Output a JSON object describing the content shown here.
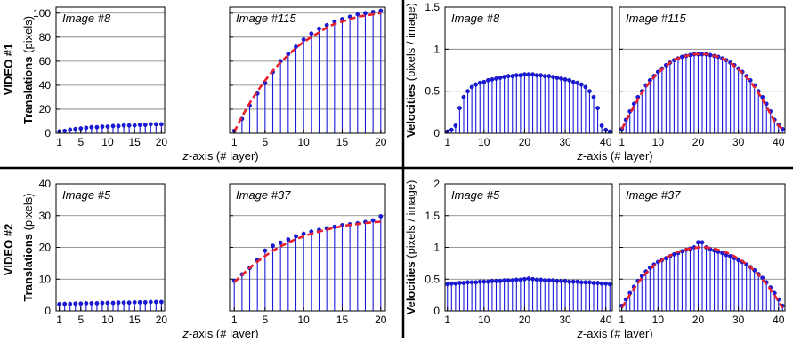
{
  "figure": {
    "row_labels": [
      "VIDEO #1",
      "VIDEO #2"
    ]
  },
  "chart_data": [
    {
      "type": "stem",
      "id": "v1-translations",
      "row_label": "VIDEO #1",
      "ylabel_bold": "Translations",
      "ylabel_unit": "(pixels)",
      "xlabel_italic": "z",
      "xlabel_rest": "-axis (# layer)",
      "ylim": [
        0,
        105
      ],
      "yticks": [
        0,
        20,
        40,
        60,
        80,
        100
      ],
      "xticks": [
        1,
        5,
        10,
        15,
        20
      ],
      "grid": "horizontal",
      "panels": [
        {
          "title": "Image #8",
          "x": [
            1,
            2,
            3,
            4,
            5,
            6,
            7,
            8,
            9,
            10,
            11,
            12,
            13,
            14,
            15,
            16,
            17,
            18,
            19,
            20
          ],
          "values": [
            1.5,
            2,
            3,
            3.5,
            4,
            4.5,
            5,
            5,
            5.5,
            5.5,
            6,
            6,
            6.5,
            6.5,
            6.5,
            7,
            7,
            7.5,
            7.5,
            7.5
          ],
          "fit": false
        },
        {
          "title": "Image #115",
          "x": [
            1,
            2,
            3,
            4,
            5,
            6,
            7,
            8,
            9,
            10,
            11,
            12,
            13,
            14,
            15,
            16,
            17,
            18,
            19,
            20
          ],
          "values": [
            2,
            12,
            23,
            33,
            42,
            51,
            60,
            66,
            72,
            78,
            83,
            87,
            90,
            93,
            95,
            97,
            99,
            100,
            101,
            102
          ],
          "fit": true,
          "fit_values": [
            1,
            14,
            25,
            35,
            44,
            52,
            59,
            65,
            71,
            76,
            80,
            84,
            88,
            91,
            93,
            95,
            97,
            98,
            99,
            100
          ]
        }
      ]
    },
    {
      "type": "stem",
      "id": "v1-velocities",
      "row_label": "VIDEO #1",
      "ylabel_bold": "Velocities",
      "ylabel_unit": "(pixels / image)",
      "xlabel_italic": "z",
      "xlabel_rest": "-axis (# layer)",
      "ylim": [
        0,
        1.5
      ],
      "yticks": [
        0,
        0.5,
        1,
        1.5
      ],
      "xticks": [
        1,
        10,
        20,
        30,
        40
      ],
      "grid": "horizontal",
      "panels": [
        {
          "title": "Image #8",
          "x": [
            1,
            2,
            3,
            4,
            5,
            6,
            7,
            8,
            9,
            10,
            11,
            12,
            13,
            14,
            15,
            16,
            17,
            18,
            19,
            20,
            21,
            22,
            23,
            24,
            25,
            26,
            27,
            28,
            29,
            30,
            31,
            32,
            33,
            34,
            35,
            36,
            37,
            38,
            39,
            40,
            41
          ],
          "values": [
            0.02,
            0.04,
            0.09,
            0.3,
            0.43,
            0.5,
            0.55,
            0.58,
            0.6,
            0.61,
            0.63,
            0.64,
            0.65,
            0.66,
            0.67,
            0.68,
            0.68,
            0.69,
            0.69,
            0.7,
            0.7,
            0.7,
            0.69,
            0.69,
            0.68,
            0.68,
            0.67,
            0.66,
            0.65,
            0.64,
            0.63,
            0.61,
            0.6,
            0.58,
            0.55,
            0.5,
            0.43,
            0.3,
            0.09,
            0.04,
            0.02
          ],
          "fit": false
        },
        {
          "title": "Image #115",
          "x": [
            1,
            2,
            3,
            4,
            5,
            6,
            7,
            8,
            9,
            10,
            11,
            12,
            13,
            14,
            15,
            16,
            17,
            18,
            19,
            20,
            21,
            22,
            23,
            24,
            25,
            26,
            27,
            28,
            29,
            30,
            31,
            32,
            33,
            34,
            35,
            36,
            37,
            38,
            39,
            40,
            41
          ],
          "values": [
            0.05,
            0.16,
            0.26,
            0.35,
            0.43,
            0.5,
            0.57,
            0.63,
            0.68,
            0.73,
            0.77,
            0.81,
            0.84,
            0.87,
            0.89,
            0.91,
            0.92,
            0.93,
            0.94,
            0.94,
            0.94,
            0.94,
            0.93,
            0.92,
            0.91,
            0.89,
            0.87,
            0.84,
            0.81,
            0.77,
            0.73,
            0.68,
            0.63,
            0.57,
            0.5,
            0.43,
            0.35,
            0.26,
            0.16,
            0.1,
            0.05
          ],
          "fit": true,
          "fit_values": [
            0.05,
            0.14,
            0.23,
            0.32,
            0.4,
            0.48,
            0.55,
            0.61,
            0.67,
            0.72,
            0.76,
            0.8,
            0.84,
            0.87,
            0.89,
            0.91,
            0.92,
            0.93,
            0.94,
            0.94,
            0.94,
            0.94,
            0.93,
            0.92,
            0.91,
            0.89,
            0.87,
            0.84,
            0.8,
            0.76,
            0.72,
            0.67,
            0.61,
            0.55,
            0.48,
            0.4,
            0.32,
            0.23,
            0.14,
            0.09,
            0.05
          ]
        }
      ]
    },
    {
      "type": "stem",
      "id": "v2-translations",
      "row_label": "VIDEO #2",
      "ylabel_bold": "Translations",
      "ylabel_unit": "(pixels)",
      "xlabel_italic": "z",
      "xlabel_rest": "-axis (# layer)",
      "ylim": [
        0,
        40
      ],
      "yticks": [
        0,
        10,
        20,
        30,
        40
      ],
      "xticks": [
        1,
        5,
        10,
        15,
        20
      ],
      "grid": "horizontal",
      "panels": [
        {
          "title": "Image #5",
          "x": [
            1,
            2,
            3,
            4,
            5,
            6,
            7,
            8,
            9,
            10,
            11,
            12,
            13,
            14,
            15,
            16,
            17,
            18,
            19,
            20
          ],
          "values": [
            2.1,
            2.2,
            2.2,
            2.3,
            2.3,
            2.4,
            2.4,
            2.4,
            2.5,
            2.5,
            2.5,
            2.6,
            2.6,
            2.6,
            2.7,
            2.7,
            2.7,
            2.8,
            2.8,
            2.8
          ],
          "fit": false
        },
        {
          "title": "Image #37",
          "x": [
            1,
            2,
            3,
            4,
            5,
            6,
            7,
            8,
            9,
            10,
            11,
            12,
            13,
            14,
            15,
            16,
            17,
            18,
            19,
            20
          ],
          "values": [
            9.5,
            11.5,
            13.5,
            16,
            19,
            20.5,
            21.5,
            22.5,
            23.5,
            24.3,
            25,
            25.5,
            26,
            26.5,
            27,
            27.3,
            27.6,
            28,
            28.5,
            29.8
          ],
          "fit": true,
          "fit_values": [
            9,
            11.3,
            13.5,
            15.5,
            17.3,
            18.9,
            20.3,
            21.5,
            22.6,
            23.5,
            24.3,
            25,
            25.6,
            26.2,
            26.7,
            27.1,
            27.4,
            27.7,
            27.9,
            28.1
          ]
        }
      ]
    },
    {
      "type": "stem",
      "id": "v2-velocities",
      "row_label": "VIDEO #2",
      "ylabel_bold": "Velocities",
      "ylabel_unit": "(pixels / image)",
      "xlabel_italic": "z",
      "xlabel_rest": "-axis (# layer)",
      "ylim": [
        0,
        2
      ],
      "yticks": [
        0,
        0.5,
        1,
        1.5,
        2
      ],
      "xticks": [
        1,
        10,
        20,
        30,
        40
      ],
      "grid": "horizontal",
      "panels": [
        {
          "title": "Image #5",
          "x": [
            1,
            2,
            3,
            4,
            5,
            6,
            7,
            8,
            9,
            10,
            11,
            12,
            13,
            14,
            15,
            16,
            17,
            18,
            19,
            20,
            21,
            22,
            23,
            24,
            25,
            26,
            27,
            28,
            29,
            30,
            31,
            32,
            33,
            34,
            35,
            36,
            37,
            38,
            39,
            40,
            41
          ],
          "values": [
            0.42,
            0.43,
            0.43,
            0.44,
            0.44,
            0.45,
            0.45,
            0.45,
            0.46,
            0.46,
            0.46,
            0.47,
            0.47,
            0.47,
            0.48,
            0.48,
            0.48,
            0.49,
            0.49,
            0.5,
            0.51,
            0.5,
            0.49,
            0.49,
            0.48,
            0.48,
            0.48,
            0.47,
            0.47,
            0.47,
            0.46,
            0.46,
            0.46,
            0.45,
            0.45,
            0.45,
            0.44,
            0.44,
            0.43,
            0.43,
            0.42
          ],
          "fit": false
        },
        {
          "title": "Image #37",
          "x": [
            1,
            2,
            3,
            4,
            5,
            6,
            7,
            8,
            9,
            10,
            11,
            12,
            13,
            14,
            15,
            16,
            17,
            18,
            19,
            20,
            21,
            22,
            23,
            24,
            25,
            26,
            27,
            28,
            29,
            30,
            31,
            32,
            33,
            34,
            35,
            36,
            37,
            38,
            39,
            40,
            41
          ],
          "values": [
            0.08,
            0.18,
            0.28,
            0.38,
            0.47,
            0.55,
            0.62,
            0.68,
            0.73,
            0.77,
            0.8,
            0.83,
            0.86,
            0.89,
            0.91,
            0.94,
            0.96,
            0.98,
            1.0,
            1.08,
            1.08,
            1.0,
            0.97,
            0.95,
            0.93,
            0.91,
            0.88,
            0.86,
            0.83,
            0.8,
            0.77,
            0.73,
            0.69,
            0.64,
            0.58,
            0.52,
            0.45,
            0.37,
            0.28,
            0.18,
            0.08
          ],
          "fit": true,
          "fit_values": [
            0.05,
            0.15,
            0.25,
            0.35,
            0.44,
            0.52,
            0.59,
            0.65,
            0.71,
            0.76,
            0.8,
            0.84,
            0.87,
            0.9,
            0.93,
            0.95,
            0.97,
            0.98,
            0.99,
            1.0,
            1.0,
            1.0,
            0.99,
            0.98,
            0.96,
            0.94,
            0.92,
            0.89,
            0.86,
            0.82,
            0.78,
            0.74,
            0.69,
            0.63,
            0.57,
            0.5,
            0.42,
            0.34,
            0.25,
            0.15,
            0.05
          ]
        }
      ]
    }
  ]
}
